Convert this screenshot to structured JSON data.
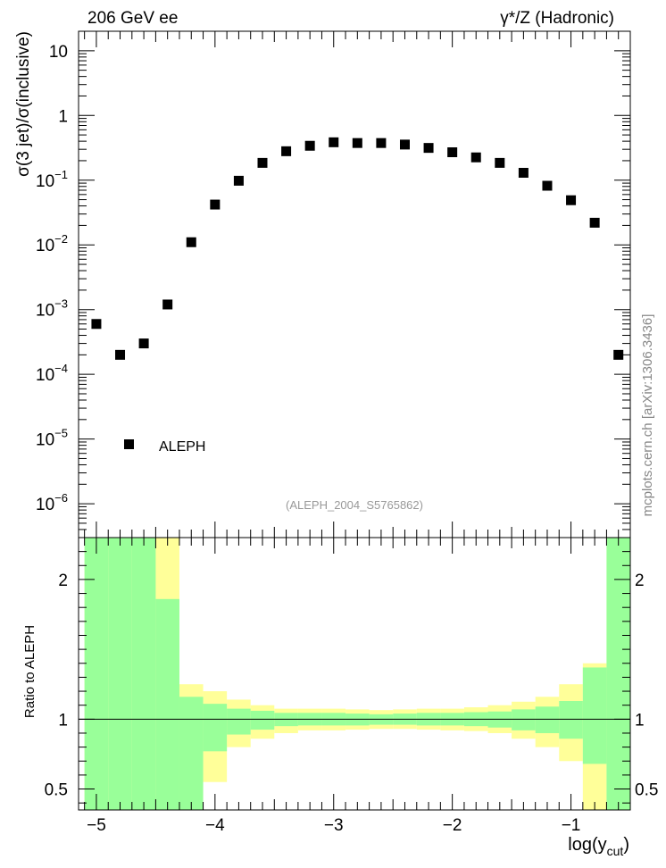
{
  "header": {
    "left": "206 GeV ee",
    "right": "γ*/Z (Hadronic)"
  },
  "side_label": "mcplots.cern.ch [arXiv:1306.3436]",
  "chart_data": [
    {
      "type": "scatter",
      "panel": "main",
      "ylabel": "σ(3 jet)/σ(inclusive)",
      "y_scale": "log",
      "ylim": [
        3e-07,
        20
      ],
      "xlim": [
        -5.15,
        -0.5
      ],
      "y_ticks": [
        {
          "value": 10,
          "label": "10"
        },
        {
          "value": 1,
          "label": "1"
        },
        {
          "value": 0.1,
          "base": "10",
          "exp": "−1"
        },
        {
          "value": 0.01,
          "base": "10",
          "exp": "−2"
        },
        {
          "value": 0.001,
          "base": "10",
          "exp": "−3"
        },
        {
          "value": 0.0001,
          "base": "10",
          "exp": "−4"
        },
        {
          "value": 1e-05,
          "base": "10",
          "exp": "−5"
        },
        {
          "value": 1e-06,
          "base": "10",
          "exp": "−6"
        }
      ],
      "legend": {
        "label": "ALEPH",
        "position": "lower-left"
      },
      "watermark": "(ALEPH_2004_S5765862)",
      "series": [
        {
          "name": "ALEPH",
          "marker": "square",
          "color": "#000000",
          "x": [
            -5.0,
            -4.8,
            -4.6,
            -4.4,
            -4.2,
            -4.0,
            -3.8,
            -3.6,
            -3.4,
            -3.2,
            -3.0,
            -2.8,
            -2.6,
            -2.4,
            -2.2,
            -2.0,
            -1.8,
            -1.6,
            -1.4,
            -1.2,
            -1.0,
            -0.8,
            -0.6
          ],
          "y": [
            0.0006,
            0.0002,
            0.0003,
            0.0012,
            0.011,
            0.042,
            0.098,
            0.185,
            0.28,
            0.34,
            0.385,
            0.375,
            0.375,
            0.355,
            0.315,
            0.27,
            0.225,
            0.185,
            0.13,
            0.082,
            0.049,
            0.022,
            0.0002
          ]
        }
      ]
    },
    {
      "type": "area",
      "panel": "ratio",
      "ylabel": "Ratio to ALEPH",
      "xlabel": "log(y_cut)",
      "xlabel_main": "log(y",
      "xlabel_sub": "cut",
      "xlabel_close": ")",
      "ylim": [
        0.35,
        2.3
      ],
      "xlim": [
        -5.15,
        -0.5
      ],
      "x_ticks": [
        {
          "value": -5,
          "label": "−5"
        },
        {
          "value": -4,
          "label": "−4"
        },
        {
          "value": -3,
          "label": "−3"
        },
        {
          "value": -2,
          "label": "−2"
        },
        {
          "value": -1,
          "label": "−1"
        }
      ],
      "y_ticks": [
        {
          "value": 2,
          "label": "2"
        },
        {
          "value": 1,
          "label": "1"
        },
        {
          "value": 0.5,
          "label": "0.5"
        }
      ],
      "reference_line": 1,
      "bands": [
        {
          "name": "stat+syst",
          "color": "#ffff99",
          "bins": [
            {
              "x0": -5.1,
              "x1": -4.9,
              "lo": 0.35,
              "hi": 2.3
            },
            {
              "x0": -4.9,
              "x1": -4.7,
              "lo": 0.35,
              "hi": 2.3
            },
            {
              "x0": -4.7,
              "x1": -4.5,
              "lo": 0.35,
              "hi": 2.3
            },
            {
              "x0": -4.5,
              "x1": -4.3,
              "lo": 0.35,
              "hi": 2.3
            },
            {
              "x0": -4.3,
              "x1": -4.1,
              "lo": 0.35,
              "hi": 1.25
            },
            {
              "x0": -4.1,
              "x1": -3.9,
              "lo": 0.55,
              "hi": 1.2
            },
            {
              "x0": -3.9,
              "x1": -3.7,
              "lo": 0.8,
              "hi": 1.14
            },
            {
              "x0": -3.7,
              "x1": -3.5,
              "lo": 0.86,
              "hi": 1.1
            },
            {
              "x0": -3.5,
              "x1": -3.3,
              "lo": 0.9,
              "hi": 1.075
            },
            {
              "x0": -3.3,
              "x1": -3.1,
              "lo": 0.92,
              "hi": 1.075
            },
            {
              "x0": -3.1,
              "x1": -2.9,
              "lo": 0.92,
              "hi": 1.075
            },
            {
              "x0": -2.9,
              "x1": -2.7,
              "lo": 0.925,
              "hi": 1.07
            },
            {
              "x0": -2.7,
              "x1": -2.5,
              "lo": 0.93,
              "hi": 1.065
            },
            {
              "x0": -2.5,
              "x1": -2.3,
              "lo": 0.93,
              "hi": 1.07
            },
            {
              "x0": -2.3,
              "x1": -2.1,
              "lo": 0.925,
              "hi": 1.075
            },
            {
              "x0": -2.1,
              "x1": -1.9,
              "lo": 0.92,
              "hi": 1.075
            },
            {
              "x0": -1.9,
              "x1": -1.7,
              "lo": 0.915,
              "hi": 1.085
            },
            {
              "x0": -1.7,
              "x1": -1.5,
              "lo": 0.9,
              "hi": 1.1
            },
            {
              "x0": -1.5,
              "x1": -1.3,
              "lo": 0.86,
              "hi": 1.125
            },
            {
              "x0": -1.3,
              "x1": -1.1,
              "lo": 0.8,
              "hi": 1.16
            },
            {
              "x0": -1.1,
              "x1": -0.9,
              "lo": 0.7,
              "hi": 1.25
            },
            {
              "x0": -0.9,
              "x1": -0.7,
              "lo": 0.35,
              "hi": 1.4
            },
            {
              "x0": -0.7,
              "x1": -0.5,
              "lo": 0.35,
              "hi": 2.3
            }
          ]
        },
        {
          "name": "stat",
          "color": "#99ff99",
          "bins": [
            {
              "x0": -5.1,
              "x1": -4.9,
              "lo": 0.35,
              "hi": 2.3
            },
            {
              "x0": -4.9,
              "x1": -4.7,
              "lo": 0.35,
              "hi": 2.3
            },
            {
              "x0": -4.7,
              "x1": -4.5,
              "lo": 0.35,
              "hi": 2.3
            },
            {
              "x0": -4.5,
              "x1": -4.3,
              "lo": 0.35,
              "hi": 1.86
            },
            {
              "x0": -4.3,
              "x1": -4.1,
              "lo": 0.35,
              "hi": 1.16
            },
            {
              "x0": -4.1,
              "x1": -3.9,
              "lo": 0.77,
              "hi": 1.11
            },
            {
              "x0": -3.9,
              "x1": -3.7,
              "lo": 0.89,
              "hi": 1.075
            },
            {
              "x0": -3.7,
              "x1": -3.5,
              "lo": 0.925,
              "hi": 1.06
            },
            {
              "x0": -3.5,
              "x1": -3.3,
              "lo": 0.95,
              "hi": 1.045
            },
            {
              "x0": -3.3,
              "x1": -3.1,
              "lo": 0.955,
              "hi": 1.045
            },
            {
              "x0": -3.1,
              "x1": -2.9,
              "lo": 0.955,
              "hi": 1.045
            },
            {
              "x0": -2.9,
              "x1": -2.7,
              "lo": 0.955,
              "hi": 1.04
            },
            {
              "x0": -2.7,
              "x1": -2.5,
              "lo": 0.96,
              "hi": 1.035
            },
            {
              "x0": -2.5,
              "x1": -2.3,
              "lo": 0.96,
              "hi": 1.04
            },
            {
              "x0": -2.3,
              "x1": -2.1,
              "lo": 0.955,
              "hi": 1.045
            },
            {
              "x0": -2.1,
              "x1": -1.9,
              "lo": 0.955,
              "hi": 1.045
            },
            {
              "x0": -1.9,
              "x1": -1.7,
              "lo": 0.95,
              "hi": 1.05
            },
            {
              "x0": -1.7,
              "x1": -1.5,
              "lo": 0.94,
              "hi": 1.055
            },
            {
              "x0": -1.5,
              "x1": -1.3,
              "lo": 0.92,
              "hi": 1.07
            },
            {
              "x0": -1.3,
              "x1": -1.1,
              "lo": 0.9,
              "hi": 1.09
            },
            {
              "x0": -1.1,
              "x1": -0.9,
              "lo": 0.86,
              "hi": 1.13
            },
            {
              "x0": -0.9,
              "x1": -0.7,
              "lo": 0.68,
              "hi": 1.37
            },
            {
              "x0": -0.7,
              "x1": -0.5,
              "lo": 0.35,
              "hi": 2.3
            }
          ]
        }
      ]
    }
  ]
}
